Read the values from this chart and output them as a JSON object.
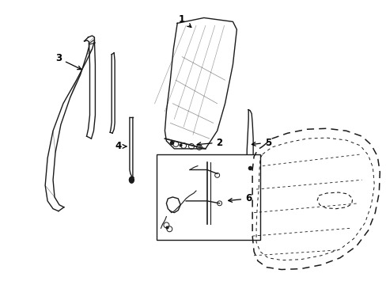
{
  "background_color": "#ffffff",
  "fig_width": 4.89,
  "fig_height": 3.6,
  "dpi": 100,
  "line_color": "#1a1a1a",
  "label_color": "#000000",
  "label_fontsize": 8.5
}
